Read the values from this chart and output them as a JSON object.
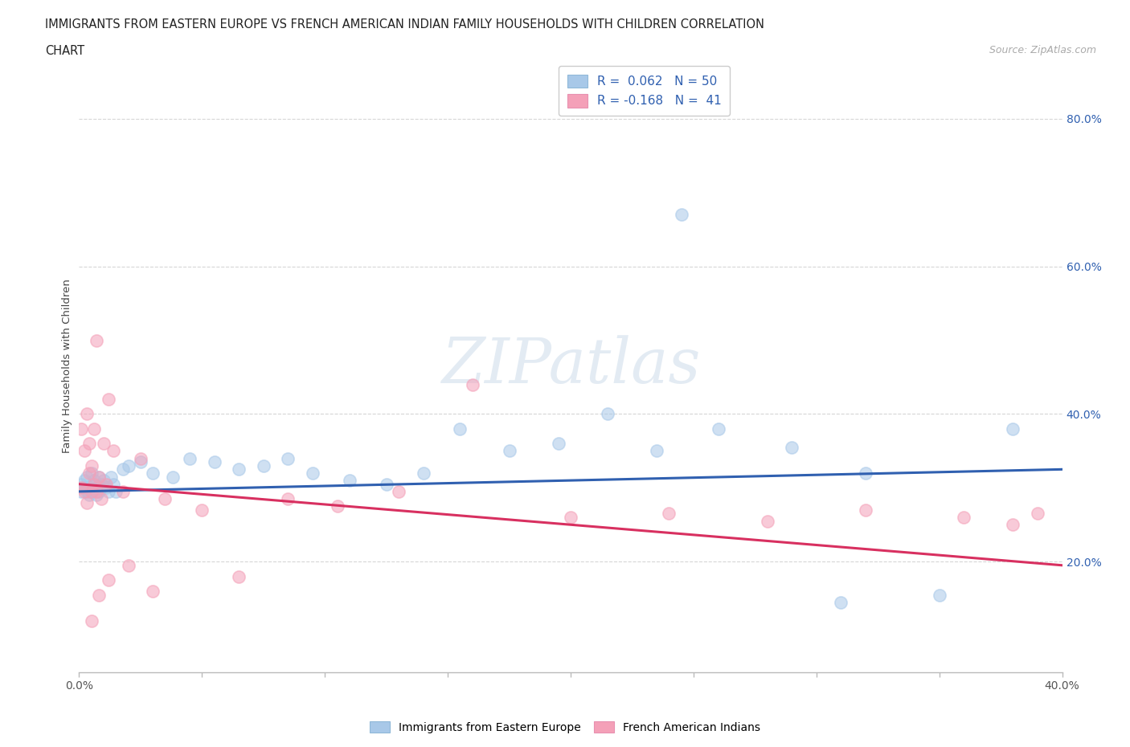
{
  "title_line1": "IMMIGRANTS FROM EASTERN EUROPE VS FRENCH AMERICAN INDIAN FAMILY HOUSEHOLDS WITH CHILDREN CORRELATION",
  "title_line2": "CHART",
  "source": "Source: ZipAtlas.com",
  "ylabel": "Family Households with Children",
  "xmin": 0.0,
  "xmax": 0.4,
  "ymin": 0.05,
  "ymax": 0.88,
  "yticks": [
    0.2,
    0.4,
    0.6,
    0.8
  ],
  "ytick_labels": [
    "20.0%",
    "40.0%",
    "60.0%",
    "80.0%"
  ],
  "xticks": [
    0.0,
    0.05,
    0.1,
    0.15,
    0.2,
    0.25,
    0.3,
    0.35,
    0.4
  ],
  "xtick_labels": [
    "0.0%",
    "",
    "",
    "",
    "",
    "",
    "",
    "",
    "40.0%"
  ],
  "blue_R": 0.062,
  "blue_N": 50,
  "pink_R": -0.168,
  "pink_N": 41,
  "blue_color": "#a8c8e8",
  "pink_color": "#f4a0b8",
  "blue_line_color": "#3060b0",
  "pink_line_color": "#d83060",
  "blue_line_start_y": 0.295,
  "blue_line_end_y": 0.325,
  "pink_line_start_y": 0.305,
  "pink_line_end_y": 0.195,
  "blue_scatter_x": [
    0.001,
    0.001,
    0.002,
    0.002,
    0.003,
    0.003,
    0.004,
    0.004,
    0.005,
    0.005,
    0.006,
    0.006,
    0.007,
    0.007,
    0.008,
    0.008,
    0.009,
    0.009,
    0.01,
    0.011,
    0.012,
    0.013,
    0.014,
    0.015,
    0.018,
    0.02,
    0.025,
    0.03,
    0.038,
    0.045,
    0.055,
    0.065,
    0.075,
    0.085,
    0.095,
    0.11,
    0.125,
    0.14,
    0.155,
    0.175,
    0.195,
    0.215,
    0.235,
    0.26,
    0.29,
    0.32,
    0.35,
    0.38,
    0.245,
    0.31
  ],
  "blue_scatter_y": [
    0.305,
    0.295,
    0.3,
    0.31,
    0.295,
    0.315,
    0.29,
    0.3,
    0.32,
    0.295,
    0.305,
    0.31,
    0.29,
    0.3,
    0.315,
    0.295,
    0.305,
    0.3,
    0.31,
    0.3,
    0.295,
    0.315,
    0.305,
    0.295,
    0.325,
    0.33,
    0.335,
    0.32,
    0.315,
    0.34,
    0.335,
    0.325,
    0.33,
    0.34,
    0.32,
    0.31,
    0.305,
    0.32,
    0.38,
    0.35,
    0.36,
    0.4,
    0.35,
    0.38,
    0.355,
    0.32,
    0.155,
    0.38,
    0.67,
    0.145
  ],
  "pink_scatter_x": [
    0.001,
    0.001,
    0.002,
    0.002,
    0.003,
    0.003,
    0.004,
    0.004,
    0.005,
    0.005,
    0.006,
    0.006,
    0.007,
    0.007,
    0.008,
    0.009,
    0.01,
    0.011,
    0.012,
    0.014,
    0.018,
    0.025,
    0.035,
    0.05,
    0.065,
    0.085,
    0.105,
    0.13,
    0.16,
    0.2,
    0.24,
    0.28,
    0.32,
    0.36,
    0.38,
    0.39,
    0.005,
    0.008,
    0.012,
    0.02,
    0.03
  ],
  "pink_scatter_y": [
    0.3,
    0.38,
    0.295,
    0.35,
    0.4,
    0.28,
    0.32,
    0.36,
    0.295,
    0.33,
    0.305,
    0.38,
    0.295,
    0.5,
    0.315,
    0.285,
    0.36,
    0.305,
    0.42,
    0.35,
    0.295,
    0.34,
    0.285,
    0.27,
    0.18,
    0.285,
    0.275,
    0.295,
    0.44,
    0.26,
    0.265,
    0.255,
    0.27,
    0.26,
    0.25,
    0.265,
    0.12,
    0.155,
    0.175,
    0.195,
    0.16
  ]
}
